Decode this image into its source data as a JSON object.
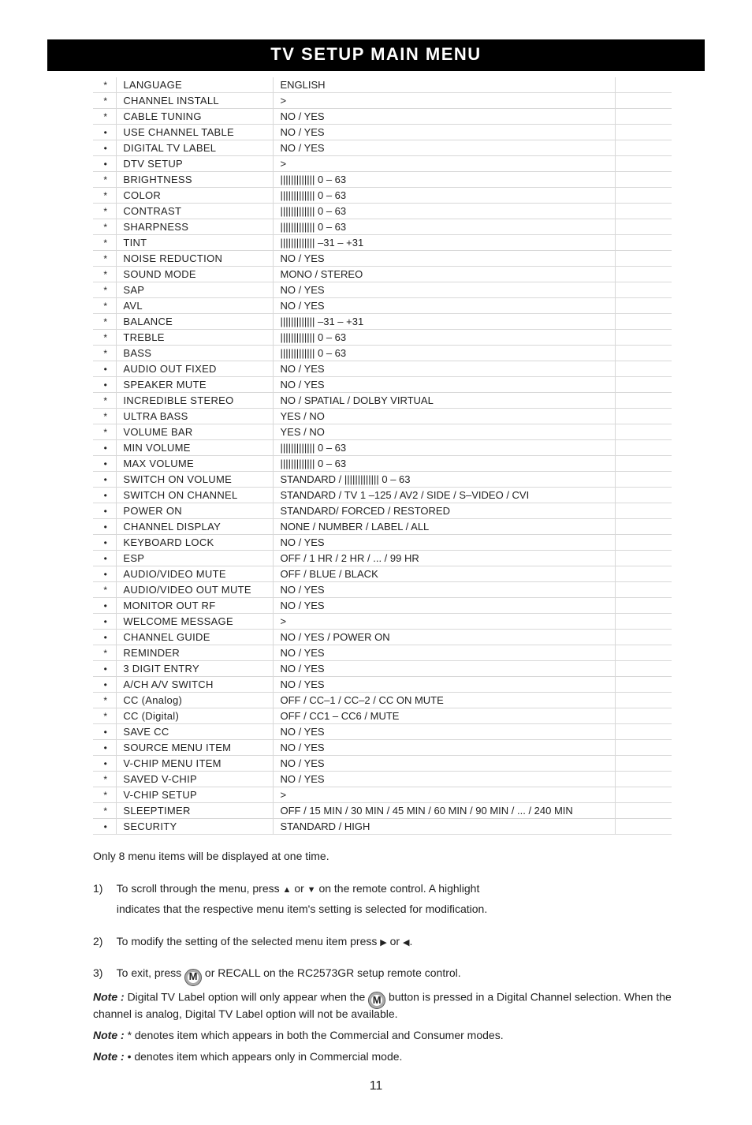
{
  "title": "TV SETUP MAIN MENU",
  "rows": [
    {
      "m": "*",
      "p": "LANGUAGE",
      "v": "ENGLISH"
    },
    {
      "m": "*",
      "p": "CHANNEL INSTALL",
      "v": ">"
    },
    {
      "m": "*",
      "p": "CABLE TUNING",
      "v": "NO / YES"
    },
    {
      "m": "•",
      "p": "USE CHANNEL TABLE",
      "v": "NO / YES"
    },
    {
      "m": "•",
      "p": "DIGITAL TV LABEL",
      "v": "NO / YES"
    },
    {
      "m": "•",
      "p": "DTV SETUP",
      "v": ">"
    },
    {
      "m": "*",
      "p": "BRIGHTNESS",
      "v": "||||||||||||| 0 – 63"
    },
    {
      "m": "*",
      "p": "COLOR",
      "v": "||||||||||||| 0 – 63"
    },
    {
      "m": "*",
      "p": "CONTRAST",
      "v": "||||||||||||| 0 – 63"
    },
    {
      "m": "*",
      "p": "SHARPNESS",
      "v": "||||||||||||| 0 – 63"
    },
    {
      "m": "*",
      "p": "TINT",
      "v": "||||||||||||| –31 – +31"
    },
    {
      "m": "*",
      "p": "NOISE REDUCTION",
      "v": "NO / YES"
    },
    {
      "m": "*",
      "p": "SOUND MODE",
      "v": "MONO / STEREO"
    },
    {
      "m": "*",
      "p": "SAP",
      "v": "NO / YES"
    },
    {
      "m": "*",
      "p": "AVL",
      "v": "NO / YES"
    },
    {
      "m": "*",
      "p": "BALANCE",
      "v": "||||||||||||| –31 – +31"
    },
    {
      "m": "*",
      "p": "TREBLE",
      "v": "||||||||||||| 0 – 63"
    },
    {
      "m": "*",
      "p": "BASS",
      "v": "||||||||||||| 0 – 63"
    },
    {
      "m": "•",
      "p": "AUDIO OUT FIXED",
      "v": "NO / YES"
    },
    {
      "m": "•",
      "p": "SPEAKER MUTE",
      "v": "NO / YES"
    },
    {
      "m": "*",
      "p": "INCREDIBLE STEREO",
      "v": "NO / SPATIAL / DOLBY VIRTUAL"
    },
    {
      "m": "*",
      "p": "ULTRA BASS",
      "v": "YES / NO"
    },
    {
      "m": "*",
      "p": "VOLUME BAR",
      "v": "YES / NO"
    },
    {
      "m": "•",
      "p": "MIN VOLUME",
      "v": "||||||||||||| 0 – 63"
    },
    {
      "m": "•",
      "p": "MAX VOLUME",
      "v": "||||||||||||| 0 – 63"
    },
    {
      "m": "•",
      "p": "SWITCH ON VOLUME",
      "v": "STANDARD / ||||||||||||| 0 – 63"
    },
    {
      "m": "•",
      "p": "SWITCH ON CHANNEL",
      "v": "STANDARD / TV 1 –125 / AV2 / SIDE / S–VIDEO / CVI"
    },
    {
      "m": "•",
      "p": "POWER ON",
      "v": "STANDARD/ FORCED / RESTORED"
    },
    {
      "m": "•",
      "p": "CHANNEL DISPLAY",
      "v": "NONE / NUMBER / LABEL / ALL"
    },
    {
      "m": "•",
      "p": "KEYBOARD LOCK",
      "v": "NO / YES"
    },
    {
      "m": "•",
      "p": "ESP",
      "v": "OFF / 1 HR / 2 HR / ... / 99 HR"
    },
    {
      "m": "•",
      "p": "AUDIO/VIDEO MUTE",
      "v": "OFF / BLUE / BLACK"
    },
    {
      "m": "*",
      "p": "AUDIO/VIDEO OUT MUTE",
      "v": "NO / YES"
    },
    {
      "m": "•",
      "p": "MONITOR OUT RF",
      "v": "NO / YES"
    },
    {
      "m": "•",
      "p": "WELCOME MESSAGE",
      "v": ">"
    },
    {
      "m": "•",
      "p": "CHANNEL GUIDE",
      "v": "NO / YES / POWER ON"
    },
    {
      "m": "*",
      "p": "REMINDER",
      "v": "NO / YES"
    },
    {
      "m": "•",
      "p": "3 DIGIT ENTRY",
      "v": "NO / YES"
    },
    {
      "m": "•",
      "p": "A/CH A/V SWITCH",
      "v": "NO / YES"
    },
    {
      "m": "*",
      "p": "CC (Analog)",
      "v": "OFF / CC–1 / CC–2 / CC ON MUTE"
    },
    {
      "m": "*",
      "p": "CC (Digital)",
      "v": "OFF / CC1 – CC6 / MUTE"
    },
    {
      "m": "•",
      "p": "SAVE CC",
      "v": "NO / YES"
    },
    {
      "m": "•",
      "p": "SOURCE MENU ITEM",
      "v": "NO / YES"
    },
    {
      "m": "•",
      "p": "V-CHIP MENU ITEM",
      "v": "NO / YES"
    },
    {
      "m": "*",
      "p": "SAVED V-CHIP",
      "v": "NO / YES"
    },
    {
      "m": "*",
      "p": "V-CHIP SETUP",
      "v": ">"
    },
    {
      "m": "*",
      "p": "SLEEPTIMER",
      "v": "OFF / 15 MIN / 30 MIN / 45 MIN / 60 MIN / 90 MIN / ... / 240 MIN"
    },
    {
      "m": "•",
      "p": "SECURITY",
      "v": "STANDARD / HIGH"
    }
  ],
  "footer_intro": "Only 8 menu items will be displayed at one time.",
  "step1a": "To scroll through the menu, press ",
  "step1b": " on the remote control.  A highlight",
  "step1c": "indicates that the respective menu item's setting is selected for modification.",
  "step2a": "To modify the setting of the selected menu item press ",
  "step3a": "To exit, press ",
  "step3b": " or RECALL on the RC2573GR setup remote control.",
  "note1a": "Digital TV Label option will only appear when the ",
  "note1b": " button is pressed in a Digital Channel selection. When the channel is analog, Digital TV Label option will not be available.",
  "note2": "* denotes item which appears in both the Commercial and Consumer modes.",
  "note3": "• denotes item which appears only in Commercial mode.",
  "page_number": "11",
  "glyphs": {
    "up": "▲",
    "down": "▼",
    "right": "▶",
    "left": "◀",
    "or": " or ",
    "note_label": "Note : ",
    "m": "M",
    "period": "."
  }
}
